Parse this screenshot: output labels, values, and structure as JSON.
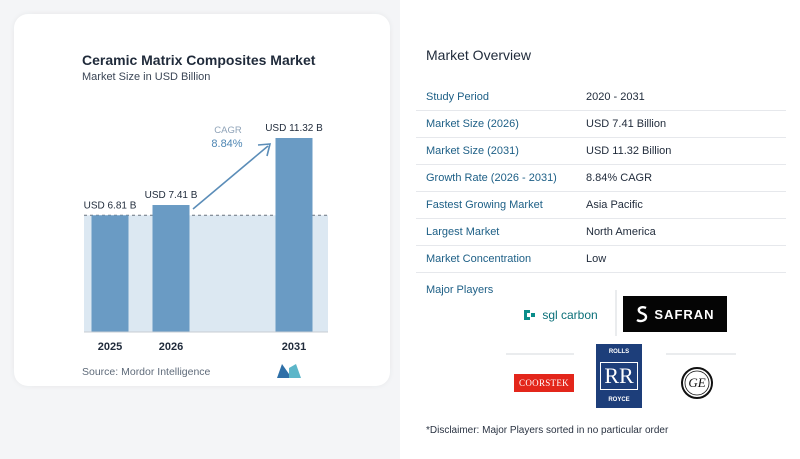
{
  "chart_data": {
    "type": "bar",
    "title": "Ceramic Matrix Composites Market",
    "subtitle": "Market Size in USD Billion",
    "categories": [
      "2025",
      "2026",
      "2031"
    ],
    "values": [
      6.81,
      7.41,
      11.32
    ],
    "data_labels": [
      "USD 6.81 B",
      "USD 7.41 B",
      "USD 11.32 B"
    ],
    "ylim": [
      0,
      11.32
    ],
    "cagr_label": "CAGR",
    "cagr_value": "8.84%",
    "colors": {
      "bar": "#6a9bc4",
      "shade": "#dce8f2",
      "arrow": "#5b8db8"
    }
  },
  "source": "Source:  Mordor Intelligence",
  "overview": {
    "title": "Market Overview",
    "rows": [
      {
        "label": "Study Period",
        "value": "2020 - 2031"
      },
      {
        "label": "Market Size (2026)",
        "value": "USD 7.41 Billion"
      },
      {
        "label": "Market Size (2031)",
        "value": "USD 11.32 Billion"
      },
      {
        "label": "Growth Rate (2026 - 2031)",
        "value": "8.84% CAGR"
      },
      {
        "label": "Fastest Growing Market",
        "value": "Asia Pacific"
      },
      {
        "label": "Largest Market",
        "value": "North America"
      },
      {
        "label": "Market Concentration",
        "value": "Low"
      }
    ]
  },
  "players": {
    "title": "Major Players",
    "sgl": "sgl carbon",
    "safran": "SAFRAN",
    "coorstek": "COORSTEK",
    "rr_top": "ROLLS",
    "rr_bottom": "ROYCE",
    "rr_mono": "RR",
    "ge": "GE"
  },
  "disclaimer": "*Disclaimer: Major Players sorted in no particular order"
}
